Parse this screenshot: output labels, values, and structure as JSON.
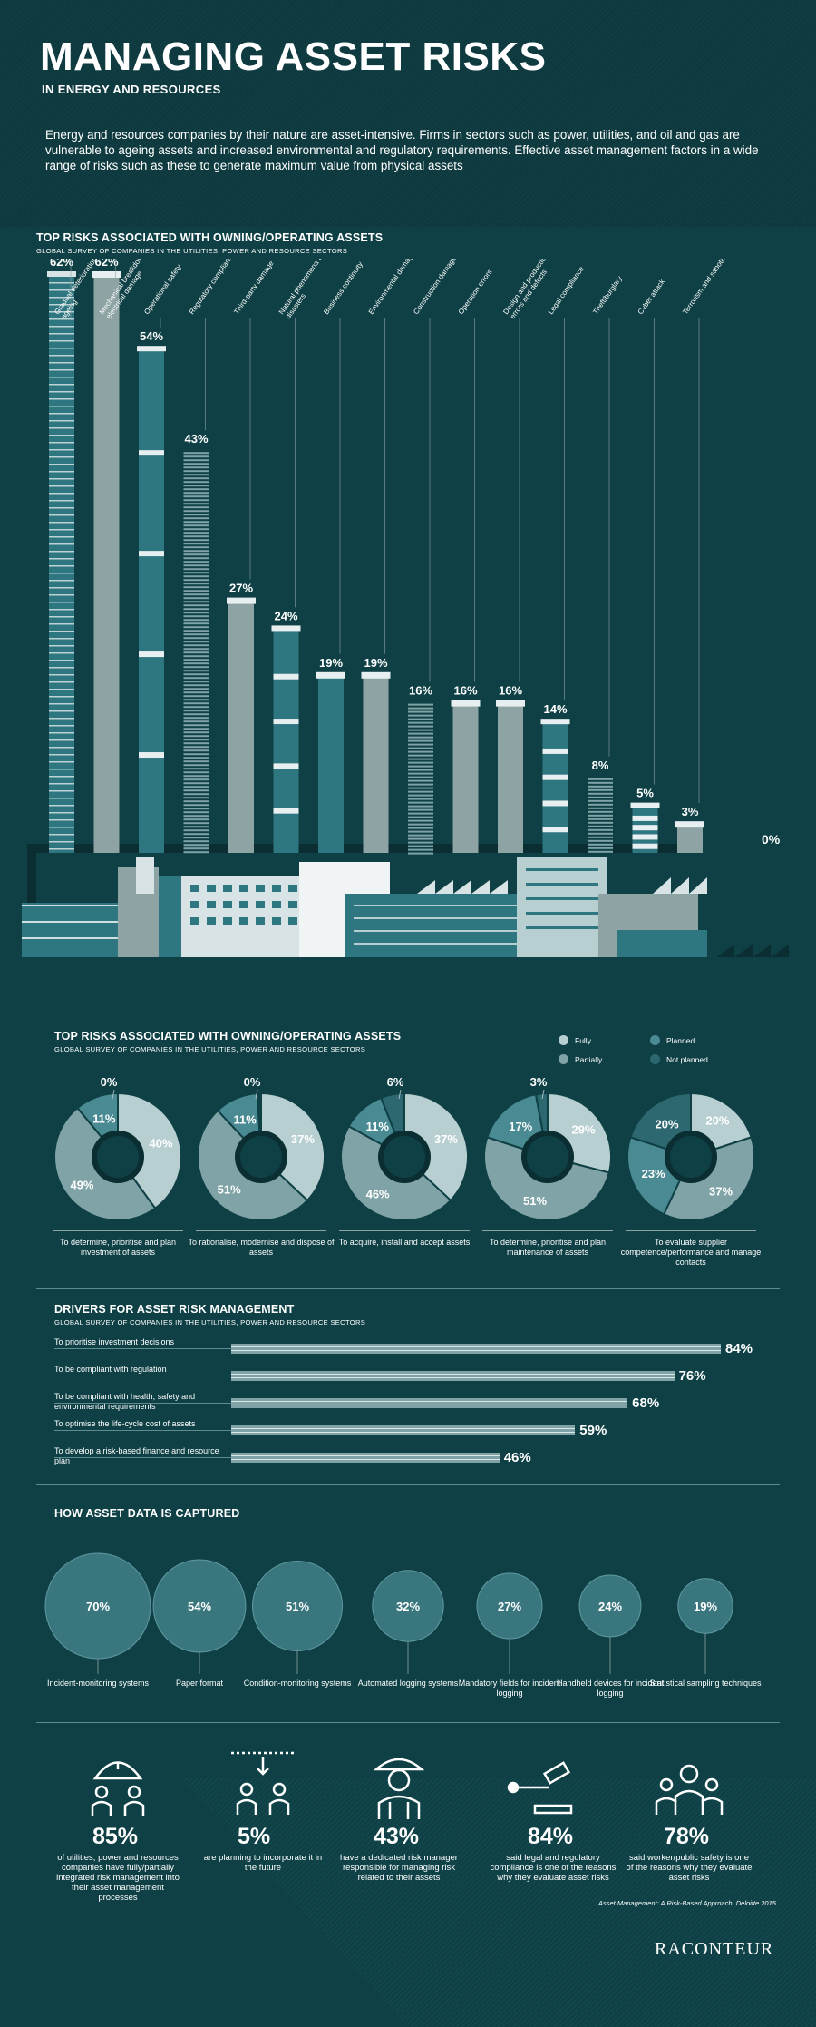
{
  "header": {
    "title": "MANAGING ASSET RISKS",
    "subtitle": "IN ENERGY AND RESOURCES",
    "intro": "Energy and resources companies by their nature are asset-intensive. Firms in sectors such as power, utilities, and oil and gas are vulnerable to ageing assets and increased environmental and regulatory requirements. Effective asset management factors in a wide range of risks such as these to generate maximum value from physical assets"
  },
  "colors": {
    "background": "#0e4045",
    "teal": "#2e7680",
    "grey": "#8ea3a4",
    "light": "#b8cfd1",
    "white": "#ffffff"
  },
  "chart_data": [
    {
      "type": "bar",
      "title": "TOP RISKS ASSOCIATED WITH OWNING/OPERATING ASSETS",
      "subtitle": "GLOBAL SURVEY OF COMPANIES IN THE UTILITIES, POWER AND RESOURCE SECTORS",
      "categories": [
        "Gradual deterioration/ ageing",
        "Mechanical breakdown/ electrical damage",
        "Operational safety",
        "Regulatory compliance",
        "Third-party damage",
        "Natural phenomena and disasters",
        "Business continuity",
        "Environmental damage",
        "Construction damage",
        "Operation errors",
        "Design and production errors and defects",
        "Legal compliance",
        "Theft/burglary",
        "Cyber attack",
        "Terrorism and sabotage"
      ],
      "values": [
        62,
        62,
        54,
        43,
        27,
        24,
        19,
        19,
        16,
        16,
        16,
        14,
        8,
        5,
        3
      ],
      "value_labels": [
        "62%",
        "62%",
        "54%",
        "43%",
        "27%",
        "24%",
        "19%",
        "19%",
        "16%",
        "16%",
        "16%",
        "14%",
        "8%",
        "5%",
        "3%"
      ],
      "baseline_label": "0%",
      "ylim": [
        0,
        62
      ]
    },
    {
      "type": "pie",
      "title": "TOP RISKS ASSOCIATED WITH OWNING/OPERATING ASSETS",
      "subtitle": "GLOBAL SURVEY OF COMPANIES IN THE UTILITIES, POWER AND RESOURCE SECTORS",
      "legend": [
        "Fully",
        "Partially",
        "Planned",
        "Not planned"
      ],
      "legend_placement": "top-right",
      "donuts": [
        {
          "caption": "To determine, prioritise and plan investment of assets",
          "values": [
            40,
            49,
            11,
            0
          ],
          "labels": [
            "40%",
            "49%",
            "11%",
            "0%"
          ]
        },
        {
          "caption": "To rationalise, modernise and dispose of assets",
          "values": [
            37,
            51,
            11,
            0
          ],
          "labels": [
            "37%",
            "51%",
            "11%",
            "0%"
          ]
        },
        {
          "caption": "To acquire, install and accept assets",
          "values": [
            37,
            46,
            11,
            6
          ],
          "labels": [
            "37%",
            "46%",
            "11%",
            "6%"
          ]
        },
        {
          "caption": "To determine, prioritise and plan maintenance of assets",
          "values": [
            29,
            51,
            17,
            3
          ],
          "labels": [
            "29%",
            "51%",
            "17%",
            "3%"
          ]
        },
        {
          "caption": "To evaluate supplier competence/performance and manage contacts",
          "values": [
            20,
            37,
            23,
            20
          ],
          "labels": [
            "20%",
            "37%",
            "23%",
            "20%"
          ]
        }
      ]
    },
    {
      "type": "bar",
      "title": "DRIVERS FOR ASSET RISK MANAGEMENT",
      "subtitle": "GLOBAL SURVEY OF COMPANIES IN THE UTILITIES, POWER AND RESOURCE SECTORS",
      "categories": [
        "To prioritise investment decisions",
        "To be compliant with regulation",
        "To be compliant with health, safety and environmental requirements",
        "To optimise the life-cycle cost of assets",
        "To develop a risk-based finance and resource plan"
      ],
      "values": [
        84,
        76,
        68,
        59,
        46
      ],
      "value_labels": [
        "84%",
        "76%",
        "68%",
        "59%",
        "46%"
      ],
      "xlim": [
        0,
        84
      ]
    },
    {
      "type": "scatter",
      "title": "HOW ASSET DATA IS CAPTURED",
      "categories": [
        "Incident-monitoring systems",
        "Paper format",
        "Condition-monitoring systems",
        "Automated logging systems",
        "Mandatory fields for incident logging",
        "Handheld devices for incident logging",
        "Statistical sampling techniques"
      ],
      "values": [
        70,
        54,
        51,
        32,
        27,
        24,
        19
      ],
      "value_labels": [
        "70%",
        "54%",
        "51%",
        "32%",
        "27%",
        "24%",
        "19%"
      ]
    }
  ],
  "stats": [
    {
      "icon": "umbrella-people-icon",
      "value": "85%",
      "text": "of utilities, power and resources companies have fully/partially integrated risk management into their asset management processes"
    },
    {
      "icon": "incoming-people-icon",
      "value": "5%",
      "text": "are planning to incorporate it in the future"
    },
    {
      "icon": "risk-manager-icon",
      "value": "43%",
      "text": "have a dedicated risk manager responsible for managing risk related to their assets"
    },
    {
      "icon": "gavel-icon",
      "value": "84%",
      "text": "said legal and regulatory compliance is one of the reasons why they evaluate asset risks"
    },
    {
      "icon": "public-group-icon",
      "value": "78%",
      "text": "said worker/public safety is one of the reasons why they evaluate asset risks"
    }
  ],
  "source": "Asset Management: A Risk-Based Approach, Deloitte 2015",
  "logo": "RACONTEUR"
}
